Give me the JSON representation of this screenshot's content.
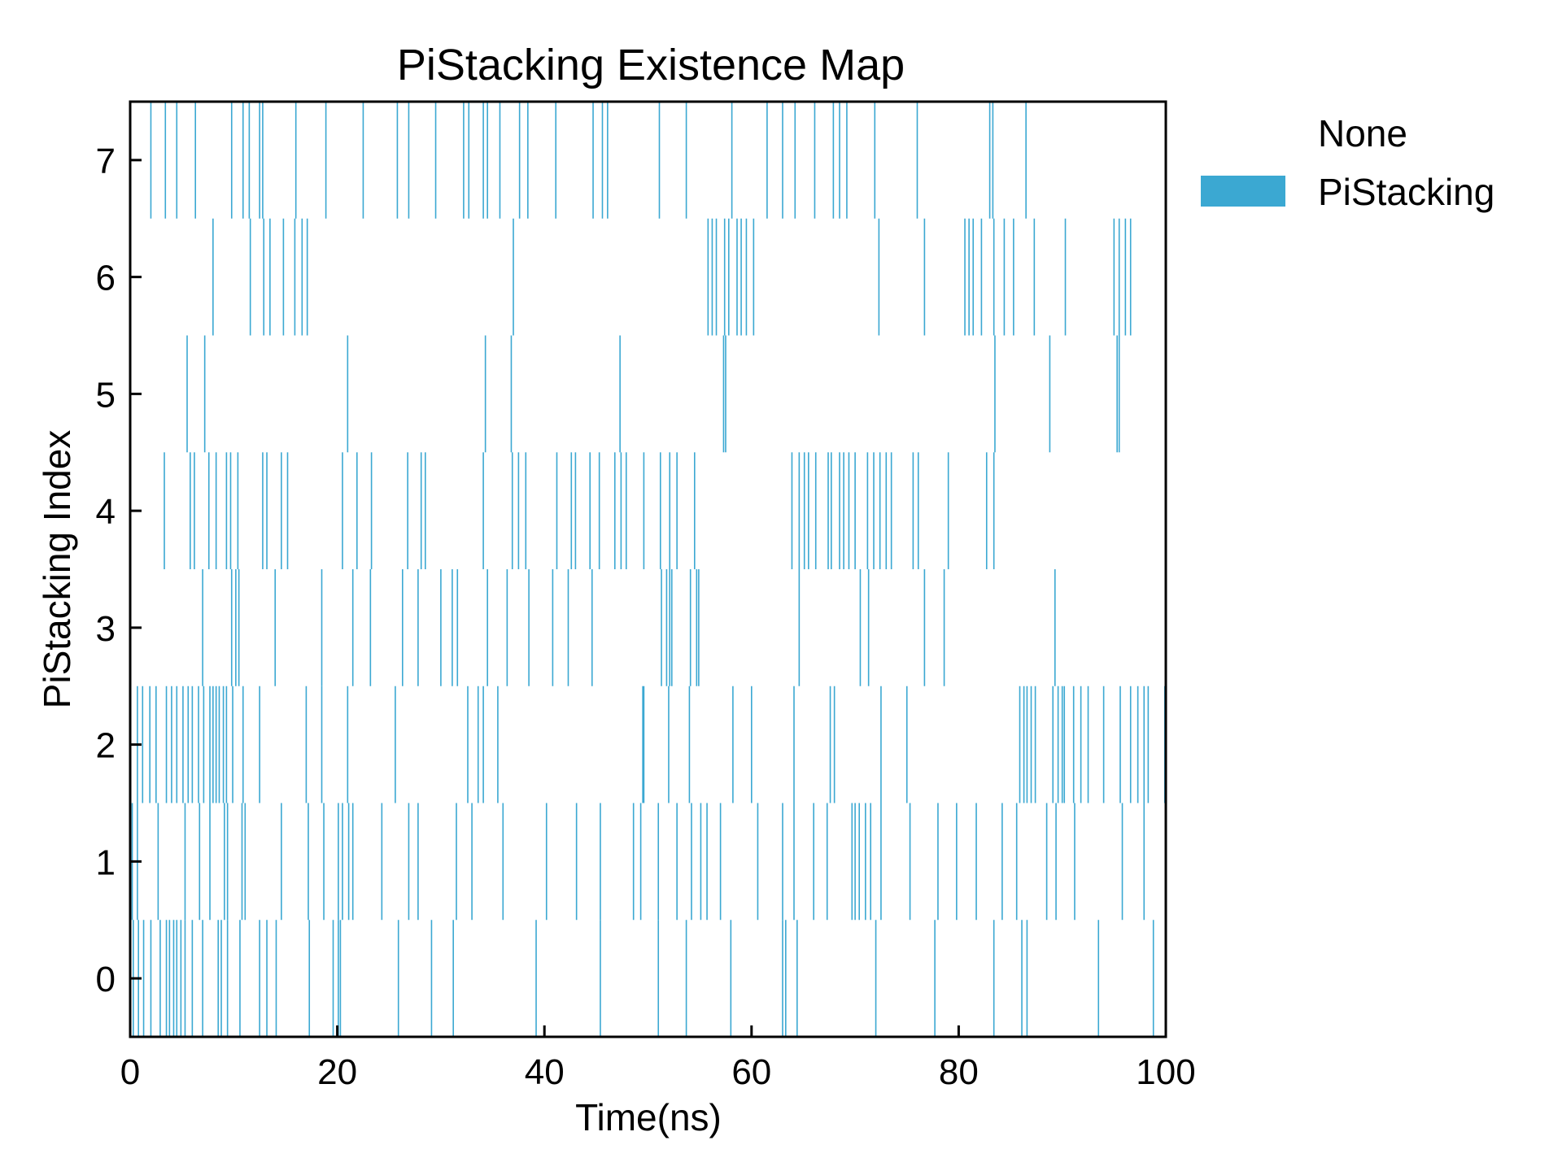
{
  "chart_data": {
    "type": "heatmap",
    "title": "PiStacking Existence Map",
    "xlabel": "Time(ns)",
    "ylabel": "PiStacking Index",
    "xlim": [
      0,
      100
    ],
    "ylim": [
      -0.5,
      7.5
    ],
    "x_ticks": [
      "0",
      "20",
      "40",
      "60",
      "80",
      "100"
    ],
    "y_ticks": [
      "0",
      "1",
      "2",
      "3",
      "4",
      "5",
      "6",
      "7"
    ],
    "legend": {
      "placement": "outside-right",
      "entries": [
        {
          "label": "None",
          "color": "#ffffff"
        },
        {
          "label": "PiStacking",
          "color": "#3ba8d2"
        }
      ]
    },
    "rows": [
      {
        "index": 0,
        "times": [
          0.3,
          0.8,
          1.3,
          2.0,
          2.9,
          3.5,
          3.8,
          4.2,
          4.5,
          4.9,
          5.3,
          6.0,
          7.0,
          8.5,
          8.8,
          9.4,
          10.6,
          12.5,
          13.2,
          14.1,
          17.3,
          19.6,
          20.1,
          20.3,
          25.9,
          29.1,
          31.2,
          39.2,
          45.4,
          51.0,
          53.7,
          58.0,
          63.0,
          63.3,
          64.4,
          72.0,
          77.7,
          83.4,
          86.1,
          86.6,
          93.5,
          98.8
        ]
      },
      {
        "index": 1,
        "times": [
          0.2,
          0.7,
          2.7,
          5.3,
          6.7,
          7.7,
          9.1,
          9.4,
          10.8,
          11.1,
          14.6,
          17.2,
          18.7,
          20.1,
          20.5,
          21.1,
          21.5,
          24.3,
          26.9,
          27.8,
          31.5,
          33.0,
          36.0,
          40.2,
          43.1,
          45.4,
          48.6,
          49.3,
          51.0,
          52.8,
          54.2,
          55.1,
          55.7,
          57.0,
          60.6,
          63.0,
          64.1,
          66.0,
          67.3,
          69.7,
          70.0,
          70.4,
          71.0,
          71.5,
          72.5,
          75.3,
          78.0,
          79.8,
          81.7,
          84.2,
          85.6,
          88.5,
          89.4,
          91.2,
          95.8,
          97.9
        ]
      },
      {
        "index": 2,
        "times": [
          0.7,
          1.2,
          1.9,
          2.5,
          3.5,
          4.0,
          4.5,
          5.1,
          5.6,
          6.0,
          6.6,
          7.1,
          7.7,
          8.0,
          8.3,
          8.6,
          9.0,
          9.3,
          9.9,
          10.9,
          12.5,
          17.0,
          18.5,
          21.0,
          25.6,
          32.6,
          33.6,
          34.1,
          35.5,
          49.5,
          49.6,
          52.0,
          54.0,
          58.2,
          60.0,
          64.1,
          67.6,
          68.0,
          72.5,
          75.0,
          85.9,
          86.3,
          86.6,
          87.0,
          87.4,
          89.1,
          89.6,
          90.0,
          90.2,
          91.1,
          91.8,
          92.5,
          94.0,
          95.6,
          96.6,
          97.3,
          97.9,
          98.3,
          99.9
        ]
      },
      {
        "index": 3,
        "times": [
          7.0,
          9.8,
          10.2,
          10.5,
          14.0,
          18.5,
          21.5,
          23.2,
          26.3,
          27.8,
          30.0,
          31.1,
          31.6,
          34.5,
          36.4,
          38.5,
          40.8,
          42.3,
          44.6,
          51.3,
          51.8,
          52.1,
          52.3,
          54.1,
          54.7,
          54.9,
          64.6,
          70.5,
          71.3,
          76.7,
          78.6,
          89.3
        ]
      },
      {
        "index": 4,
        "times": [
          3.3,
          5.8,
          6.2,
          7.6,
          8.3,
          9.3,
          9.7,
          10.4,
          12.8,
          13.2,
          14.6,
          15.2,
          20.5,
          21.9,
          23.3,
          26.8,
          28.1,
          28.5,
          34.1,
          36.9,
          37.5,
          38.2,
          41.2,
          42.6,
          43.0,
          44.4,
          45.3,
          46.8,
          47.4,
          47.9,
          49.6,
          51.2,
          52.1,
          52.8,
          54.5,
          63.9,
          64.6,
          65.1,
          65.5,
          66.2,
          67.4,
          67.7,
          68.5,
          68.9,
          69.4,
          70.0,
          71.2,
          71.8,
          72.4,
          73.0,
          73.5,
          75.6,
          76.1,
          79.0,
          82.7,
          83.4
        ]
      },
      {
        "index": 5,
        "times": [
          5.5,
          7.2,
          21.0,
          34.3,
          36.8,
          47.3,
          57.3,
          57.5,
          83.5,
          88.8,
          95.3,
          95.5
        ]
      },
      {
        "index": 6,
        "times": [
          8.0,
          11.6,
          12.9,
          13.5,
          14.8,
          15.9,
          16.6,
          17.1,
          37.0,
          55.8,
          56.2,
          56.6,
          57.4,
          57.8,
          58.6,
          59.0,
          59.5,
          60.2,
          72.3,
          76.7,
          80.6,
          81.0,
          81.4,
          82.2,
          83.4,
          84.4,
          85.3,
          87.3,
          90.3,
          95.0,
          95.5,
          96.1,
          96.6
        ]
      },
      {
        "index": 7,
        "times": [
          2.0,
          3.4,
          4.5,
          6.3,
          9.8,
          10.9,
          11.5,
          12.5,
          12.8,
          16.0,
          18.9,
          22.5,
          25.8,
          26.9,
          29.5,
          32.2,
          32.7,
          34.1,
          34.5,
          35.7,
          37.6,
          38.4,
          41.1,
          44.7,
          45.6,
          46.1,
          51.1,
          53.7,
          58.1,
          61.5,
          63.0,
          64.2,
          66.1,
          67.9,
          68.5,
          69.2,
          71.9,
          76.0,
          83.0,
          83.3,
          86.5
        ]
      }
    ]
  }
}
